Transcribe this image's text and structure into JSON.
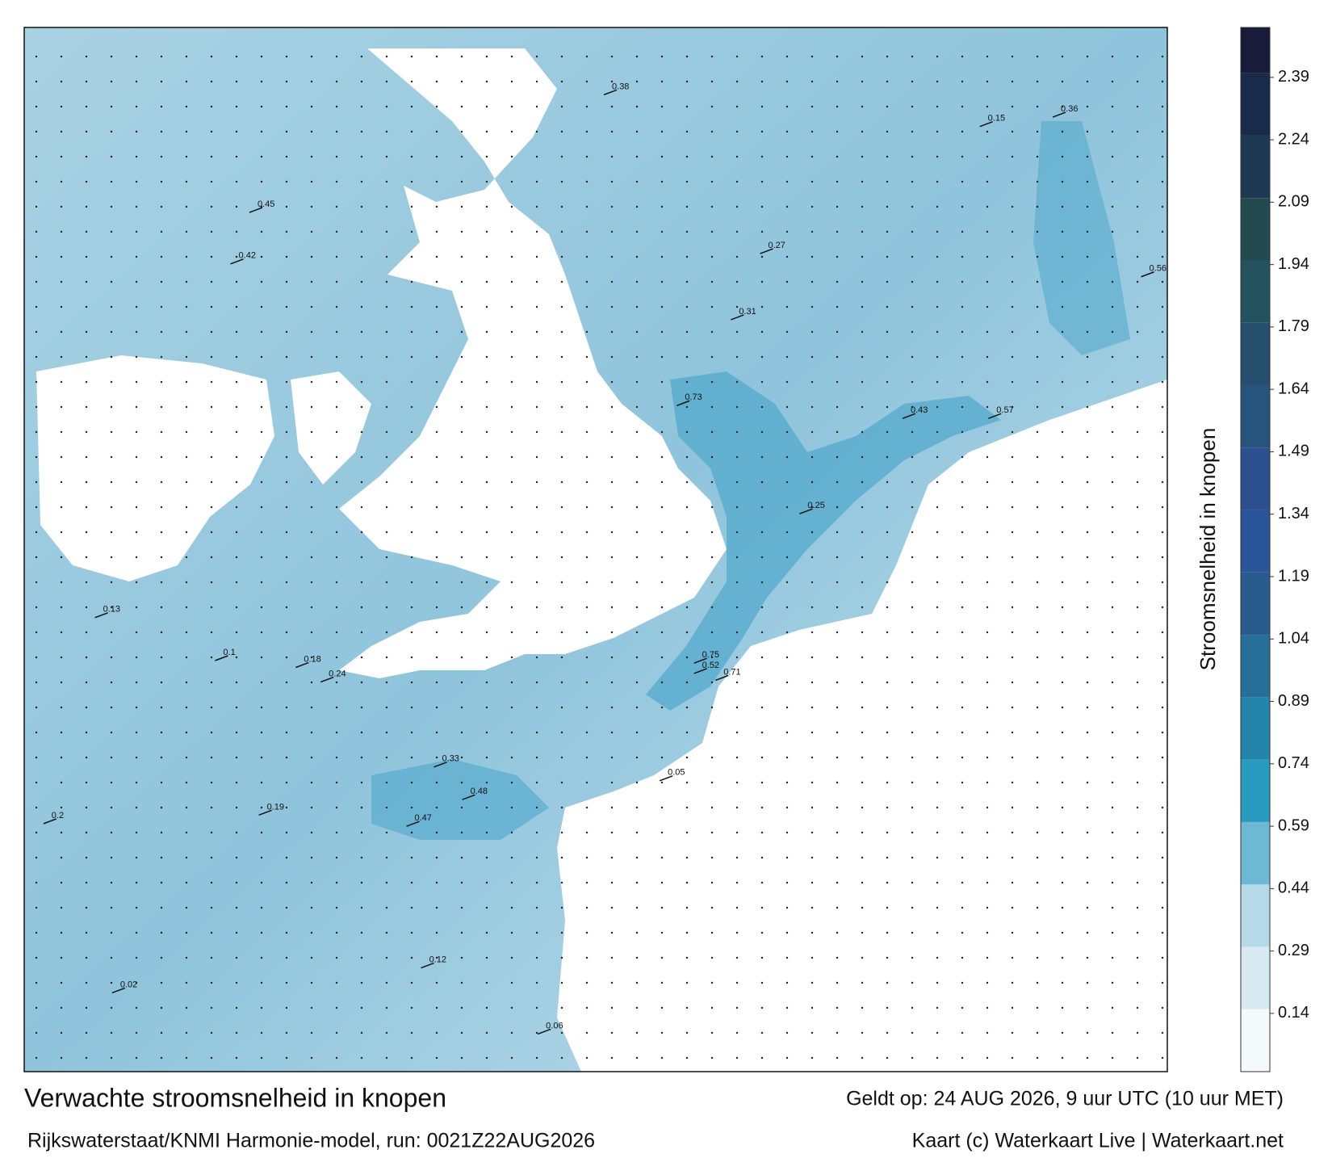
{
  "chart_data": {
    "type": "map",
    "title": "Verwachte stroomsnelheid in knopen",
    "valid_time": "Geldt op: 24 AUG 2026, 9 uur UTC (10 uur MET)",
    "source": "Rijkswaterstaat/KNMI Harmonie-model, run: 0021Z22AUG2026",
    "credit": "Kaart (c) Waterkaart Live | Waterkaart.net",
    "colorbar_label": "Stroomsnelheid in knopen",
    "colorbar_lim": [
      0,
      2.51
    ],
    "colorbar_ticks": [
      0.14,
      0.29,
      0.44,
      0.59,
      0.74,
      0.89,
      1.04,
      1.19,
      1.34,
      1.49,
      1.64,
      1.79,
      1.94,
      2.09,
      2.24,
      2.39
    ],
    "colormap": [
      "#f4f9fb",
      "#d7eaf2",
      "#b6d9e8",
      "#6fb8d4",
      "#2a9bc0",
      "#2485ab",
      "#266f99",
      "#2a5b8f",
      "#2b5599",
      "#2c4f8e",
      "#27547c",
      "#264f6e",
      "#24535f",
      "#224a4f",
      "#1d3853",
      "#1a2a4a",
      "#181b3a"
    ],
    "speed_labels": [
      0.73,
      0.75,
      0.71,
      0.52,
      0.48,
      0.47,
      0.43,
      0.57,
      0.56,
      0.36,
      0.38,
      0.45,
      0.42,
      0.31,
      0.27,
      0.24,
      0.19,
      0.2,
      0.13,
      0.1,
      0.12,
      0.06,
      0.05,
      0.02,
      0.18,
      0.33,
      0.25,
      0.15
    ]
  }
}
